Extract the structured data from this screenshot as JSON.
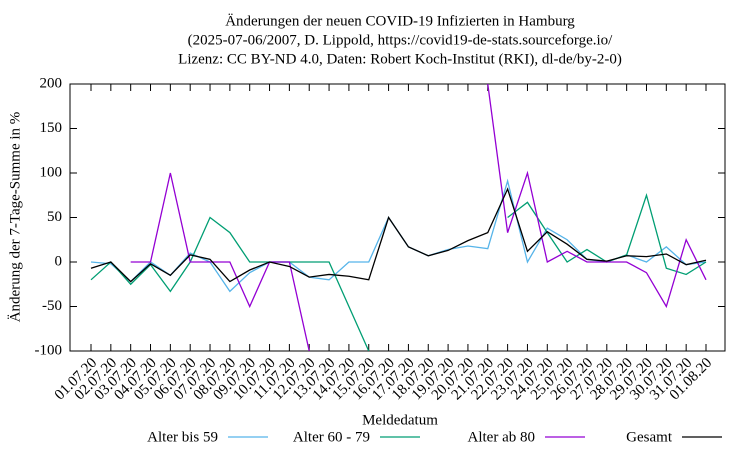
{
  "chart_data": {
    "type": "line",
    "title": [
      "Änderungen der neuen COVID-19 Infizierten in Hamburg",
      "(2025-07-06/2007, D. Lippold, https://covid19-de-stats.sourceforge.io/",
      "Lizenz: CC BY-ND 4.0, Daten: Robert Koch-Institut (RKI), dl-de/by-2-0)"
    ],
    "x_label": "Meldedatum",
    "y_label": "Änderung der 7-Tage-Summe in %",
    "categories": [
      "01.07.20",
      "02.07.20",
      "03.07.20",
      "04.07.20",
      "05.07.20",
      "06.07.20",
      "07.07.20",
      "08.07.20",
      "09.07.20",
      "10.07.20",
      "11.07.20",
      "12.07.20",
      "13.07.20",
      "14.07.20",
      "15.07.20",
      "16.07.20",
      "17.07.20",
      "18.07.20",
      "19.07.20",
      "20.07.20",
      "21.07.20",
      "22.07.20",
      "23.07.20",
      "24.07.20",
      "25.07.20",
      "26.07.20",
      "27.07.20",
      "28.07.20",
      "29.07.20",
      "30.07.20",
      "31.07.20",
      "01.08.20"
    ],
    "ylim": [
      -100,
      200
    ],
    "yticks": [
      -100,
      -50,
      0,
      50,
      100,
      150,
      200
    ],
    "series": [
      {
        "name": "Alter bis 59",
        "color": "#56b4e9",
        "values": [
          0,
          -2,
          -22,
          0,
          -15,
          10,
          0,
          -33,
          -12,
          0,
          0,
          -17,
          -20,
          0,
          0,
          50,
          17,
          7,
          14,
          18,
          15,
          91,
          0,
          38,
          25,
          3,
          0,
          8,
          0,
          17,
          -3,
          0
        ]
      },
      {
        "name": "Alter 60 - 79",
        "color": "#009e73",
        "values": [
          -20,
          0,
          -25,
          -3,
          -33,
          0,
          50,
          33,
          0,
          0,
          0,
          0,
          0,
          -50,
          -100,
          null,
          null,
          null,
          null,
          null,
          null,
          50,
          67,
          33,
          0,
          14,
          0,
          8,
          75,
          -7,
          -14,
          0
        ]
      },
      {
        "name": "Alter ab 80",
        "color": "#9400d3",
        "values": [
          null,
          null,
          0,
          0,
          100,
          0,
          0,
          0,
          -50,
          0,
          0,
          -100,
          null,
          null,
          null,
          null,
          null,
          null,
          null,
          null,
          200,
          33,
          100,
          0,
          12,
          0,
          0,
          0,
          -12,
          -50,
          25,
          -20
        ]
      },
      {
        "name": "Gesamt",
        "color": "#000000",
        "values": [
          -7,
          0,
          -22,
          -2,
          -15,
          8,
          3,
          -22,
          -9,
          0,
          -5,
          -17,
          -14,
          -16,
          -20,
          50,
          17,
          7,
          13,
          24,
          33,
          82,
          12,
          34,
          20,
          3,
          1,
          7,
          6,
          9,
          -3,
          2
        ]
      }
    ]
  }
}
